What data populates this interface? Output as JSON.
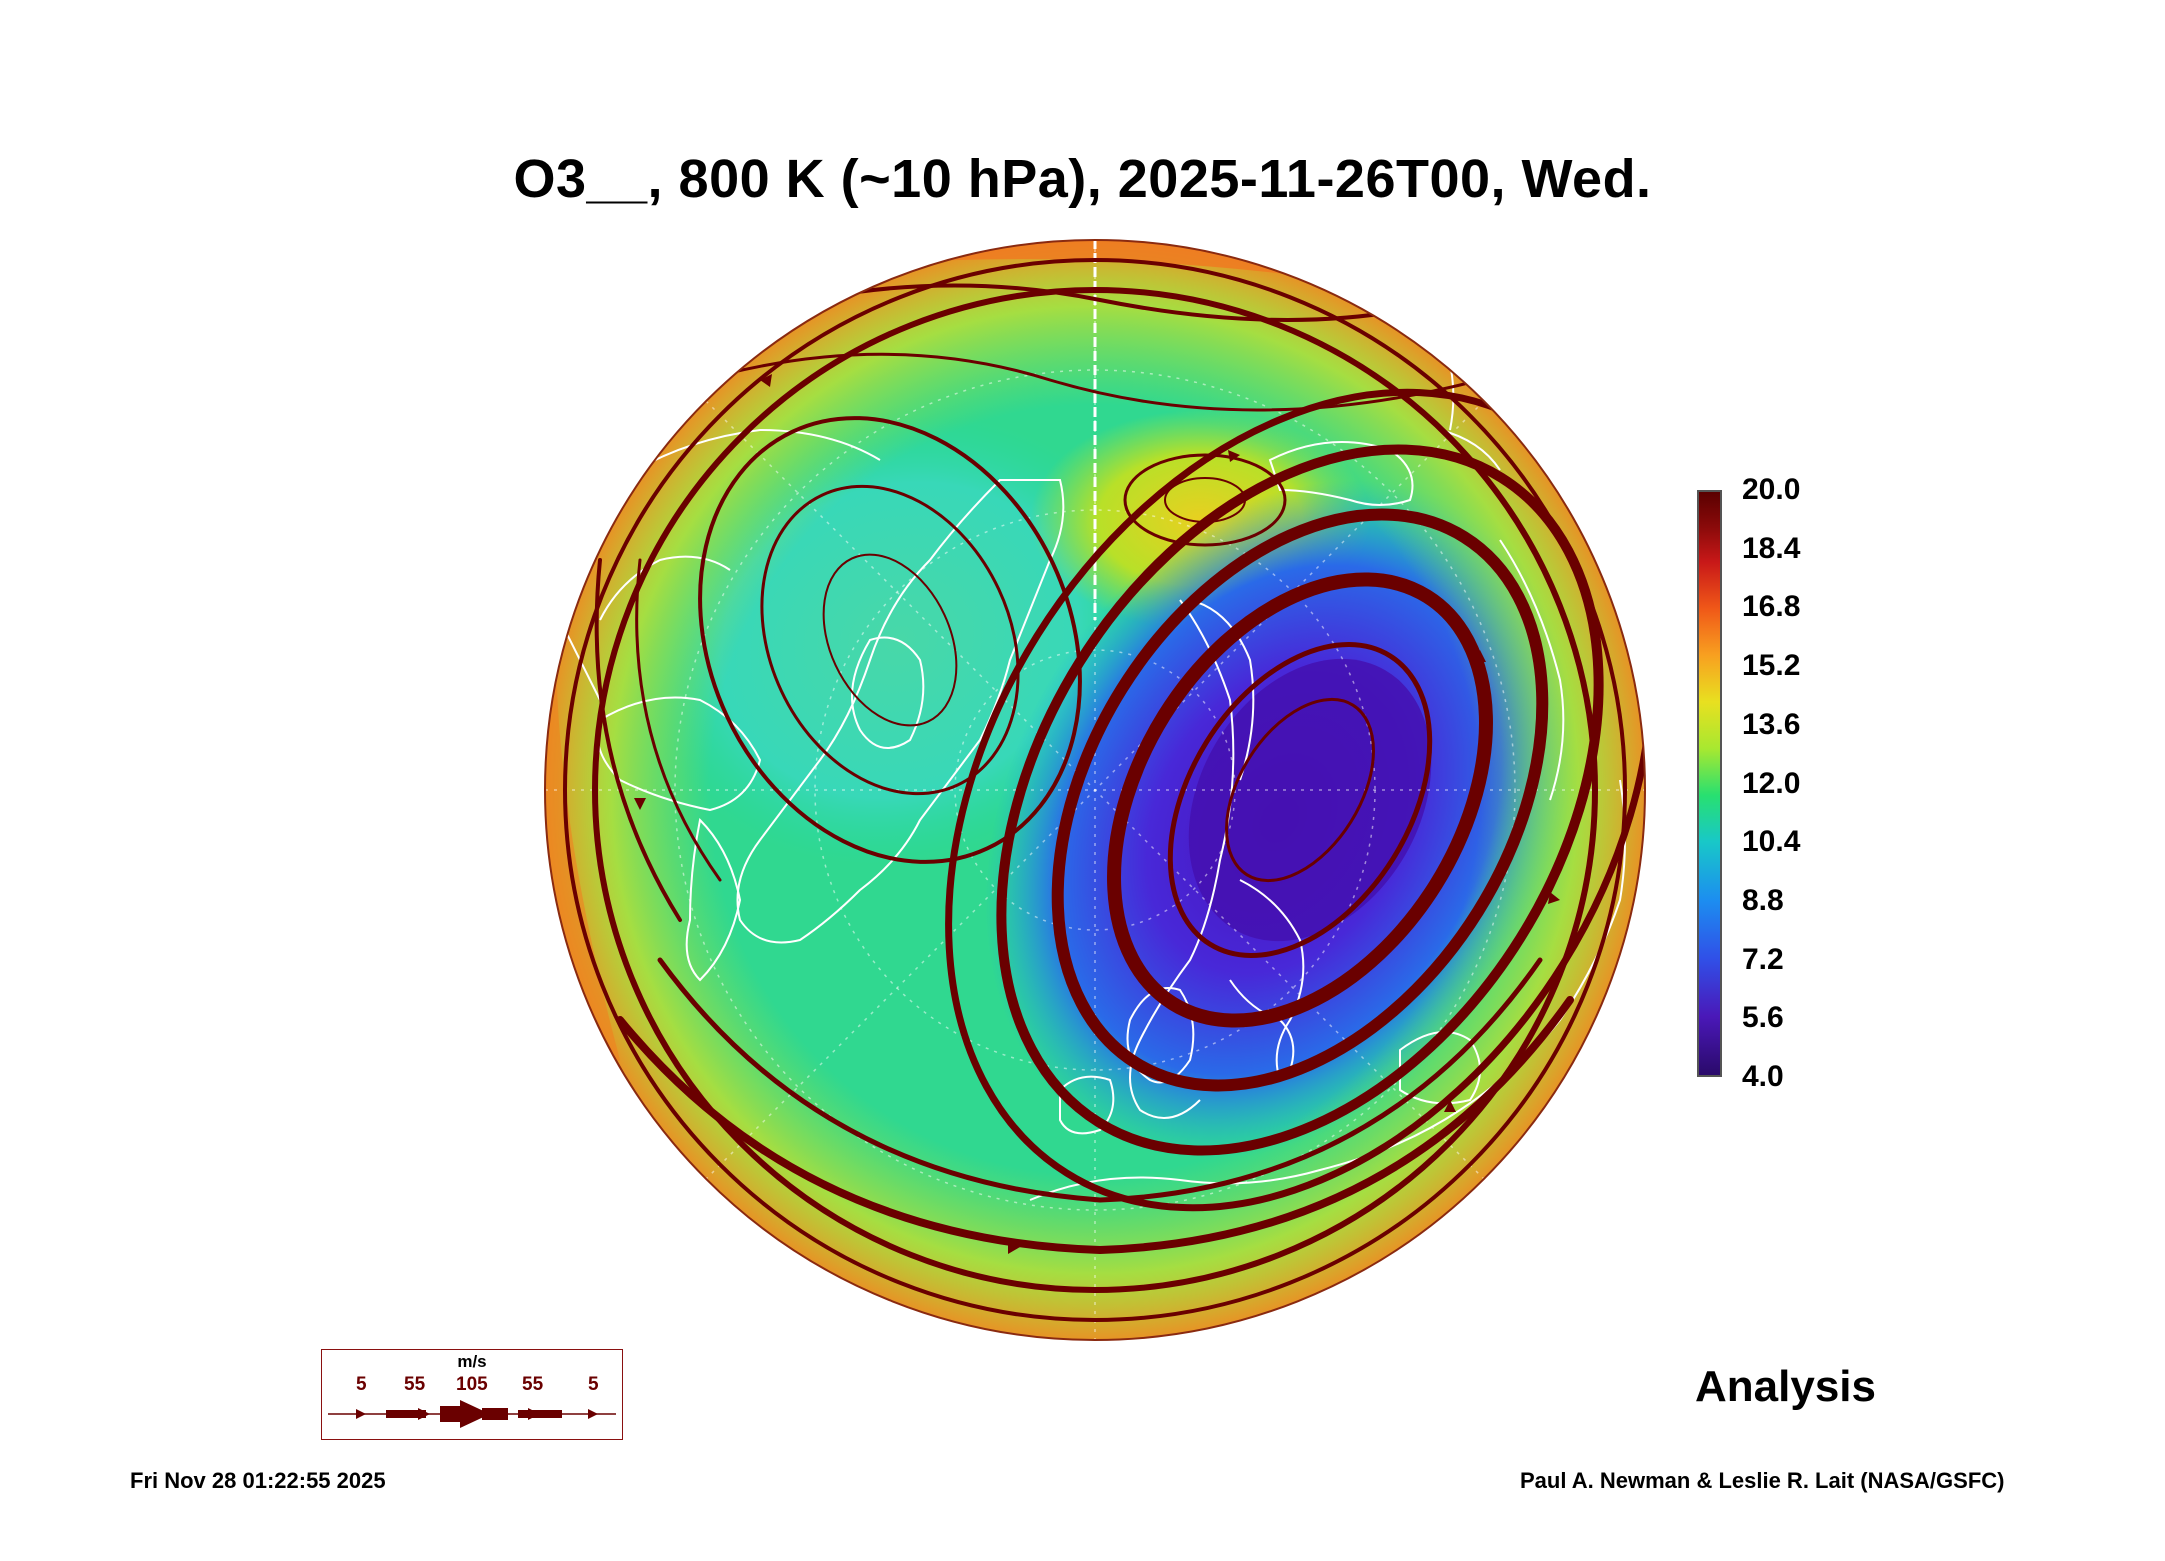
{
  "title": "O3__, 800 K (~10 hPa), 2025-11-26T00, Wed.",
  "colorbar": {
    "labels": [
      "20.0",
      "18.4",
      "16.8",
      "15.2",
      "13.6",
      "12.0",
      "10.4",
      "8.8",
      "7.2",
      "5.6",
      "4.0"
    ],
    "min": 4.0,
    "max": 20.0
  },
  "wind_legend": {
    "unit": "m/s",
    "values": [
      "5",
      "55",
      "105",
      "55",
      "5"
    ]
  },
  "run_type": "Analysis",
  "timestamp": "Fri Nov 28 01:22:55 2025",
  "credit": "Paul A. Newman & Leslie R. Lait (NASA/GSFC)",
  "colors": {
    "streamline": "#6a0000",
    "coastline": "#ffffff",
    "low_ozone": "#3a1ab0",
    "high_ozone": "#f07020"
  }
}
